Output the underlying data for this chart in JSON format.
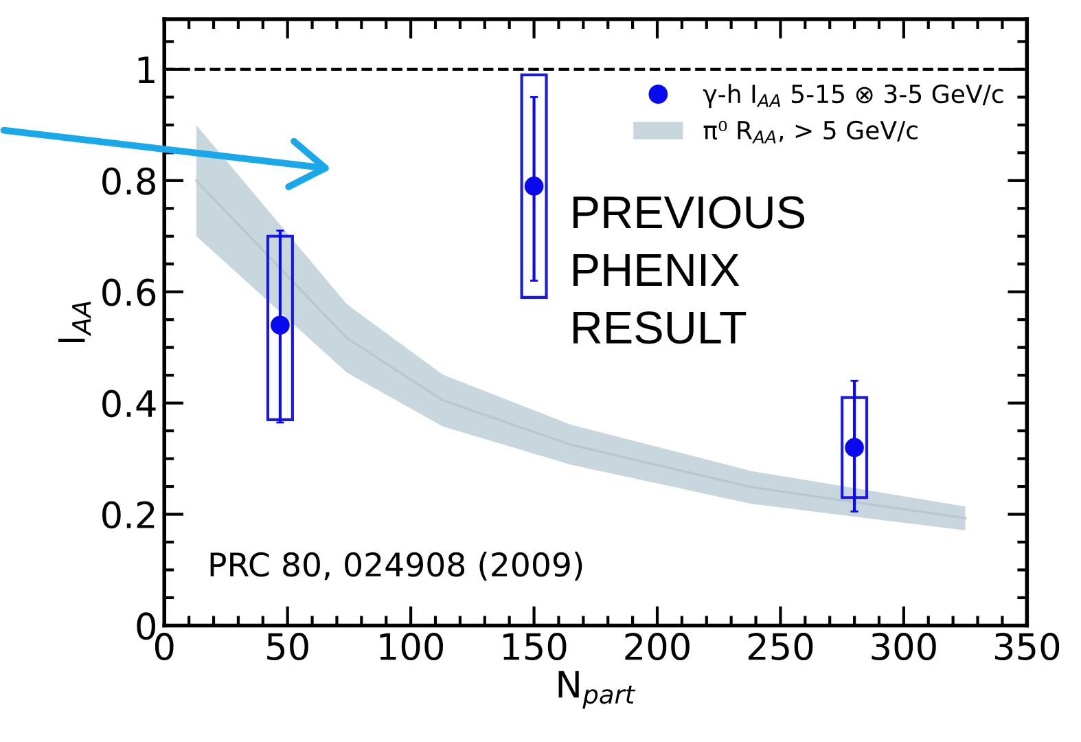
{
  "chart_data": {
    "type": "scatter",
    "xlabel": "N$_{part}$",
    "ylabel": "I$_{AA}$",
    "xlim": [
      0,
      350
    ],
    "ylim": [
      0,
      1.09
    ],
    "xticks": [
      0,
      50,
      100,
      150,
      200,
      250,
      300,
      350
    ],
    "yticks": [
      0,
      0.2,
      0.4,
      0.6,
      0.8,
      1
    ],
    "grid": false,
    "legend": "top right",
    "ref_lines": [
      {
        "axis": "y",
        "value": 1,
        "label": null,
        "color": "#000000",
        "line_style": "dashed"
      }
    ],
    "annotations": [
      "PREVIOUS\nPHENIX\nRESULT",
      "PRC 80, 024908 (2009)"
    ],
    "series": [
      {
        "type": "bar",
        "x": [
          47,
          150,
          280
        ],
        "base": [
          0.37,
          0.59,
          0.23
        ],
        "values": [
          0.33,
          0.4,
          0.18
        ],
        "color": "#1a1ae0"
      },
      {
        "name": "γ-h I$_{AA}$ 5-15 ⊗ 3-5 GeV/c",
        "marker": "circle",
        "x": [
          47,
          150,
          280
        ],
        "values": [
          0.54,
          0.79,
          0.32
        ],
        "errors": [
          [
            0.365,
            0.71
          ],
          [
            0.62,
            0.95
          ],
          [
            0.205,
            0.44
          ]
        ],
        "color": "#0a0af0"
      },
      {
        "type": "line",
        "name": "π⁰ R$_{AA}$, > 5 GeV/c",
        "x": [
          13,
          74,
          113,
          165,
          238,
          325
        ],
        "values": [
          0.8,
          0.517,
          0.405,
          0.325,
          0.249,
          0.193
        ],
        "lower": [
          0.7,
          0.455,
          0.358,
          0.289,
          0.219,
          0.171
        ],
        "upper": [
          0.9,
          0.578,
          0.451,
          0.361,
          0.278,
          0.214
        ],
        "color": "#c8d6de"
      }
    ]
  }
}
